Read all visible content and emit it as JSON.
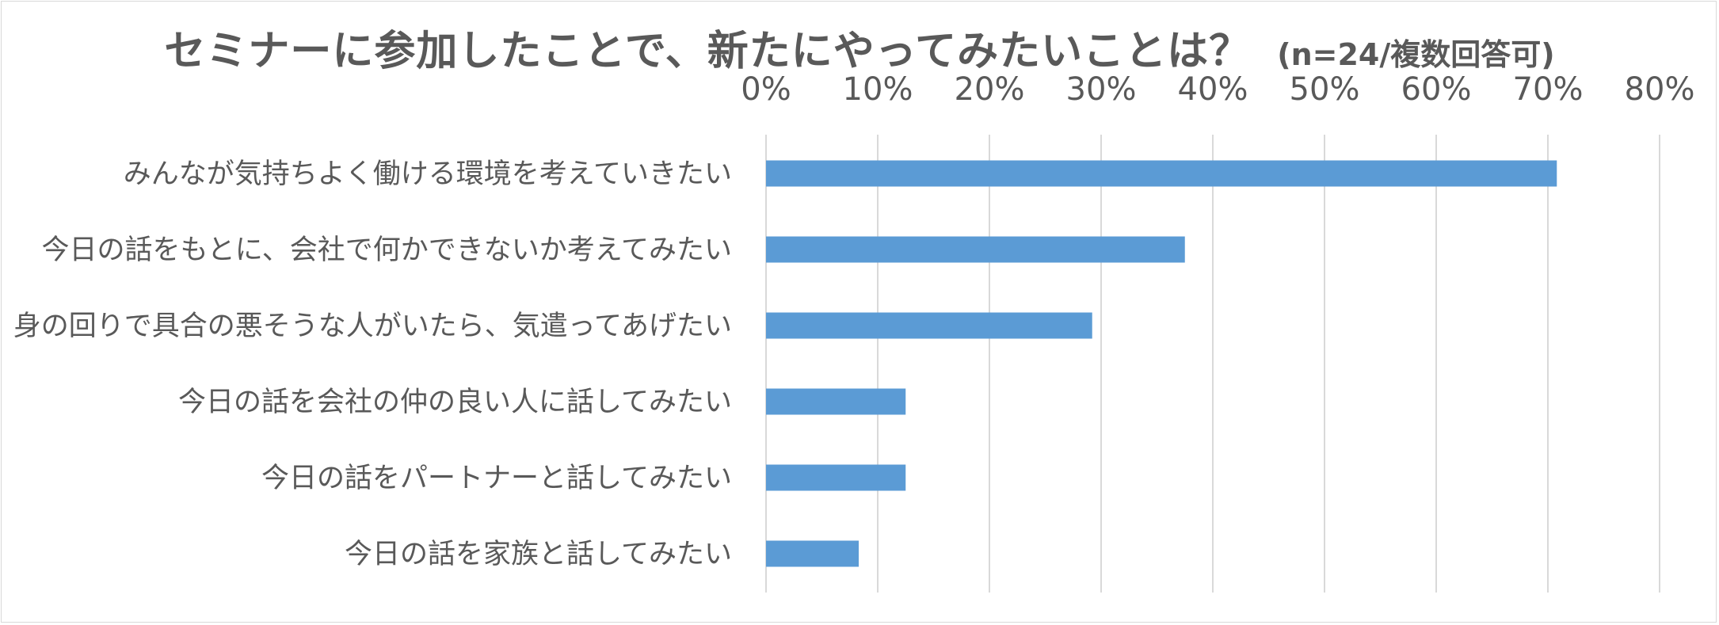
{
  "chart_data": {
    "type": "bar",
    "orientation": "horizontal",
    "title": "セミナーに参加したことで、新たにやってみたいことは？",
    "subtitle": "(n=24/複数回答可)",
    "categories": [
      "みんなが気持ちよく働ける環境を考えていきたい",
      "今日の話をもとに、会社で何かできないか考えてみたい",
      "身の回りで具合の悪そうな人がいたら、気遣ってあげたい",
      "今日の話を会社の仲の良い人に話してみたい",
      "今日の話をパートナーと話してみたい",
      "今日の話を家族と話してみたい"
    ],
    "values": [
      70.8,
      37.5,
      29.2,
      12.5,
      12.5,
      8.3
    ],
    "xlim": [
      0,
      80
    ],
    "xticks": [
      0,
      10,
      20,
      30,
      40,
      50,
      60,
      70,
      80
    ],
    "xtick_labels": [
      "0%",
      "10%",
      "20%",
      "30%",
      "40%",
      "50%",
      "60%",
      "70%",
      "80%"
    ],
    "axis_position": "top",
    "grid": true,
    "legend": "none",
    "bar_color": "#5b9bd5",
    "grid_color": "#d9d9d9",
    "text_color": "#595959"
  }
}
